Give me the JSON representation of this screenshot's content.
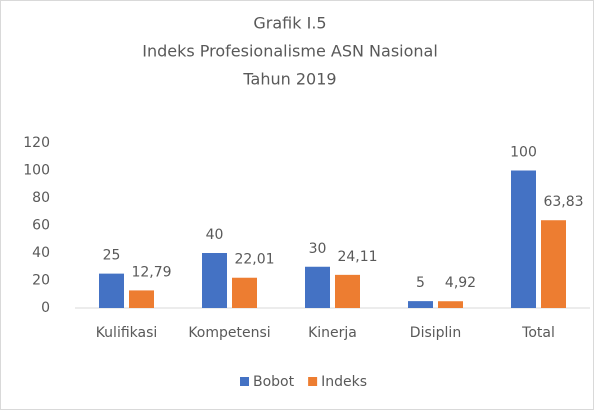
{
  "chart_data": {
    "type": "bar",
    "title_lines": [
      "Grafik I.5",
      "Indeks Profesionalisme ASN Nasional",
      "Tahun 2019"
    ],
    "categories": [
      "Kulifikasi",
      "Kompetensi",
      "Kinerja",
      "Disiplin",
      "Total"
    ],
    "series": [
      {
        "name": "Bobot",
        "color": "#4472c4",
        "values": [
          25,
          40,
          30,
          5,
          100
        ]
      },
      {
        "name": "Indeks",
        "color": "#ed7d31",
        "values": [
          12.79,
          22.01,
          24.11,
          4.92,
          63.83
        ],
        "value_labels": [
          "12,79",
          "22,01",
          "24,11",
          "4,92",
          "63,83"
        ]
      }
    ],
    "ylim": [
      0,
      120
    ],
    "yticks": [
      0,
      20,
      40,
      60,
      80,
      100,
      120
    ],
    "grid": false,
    "legend": "bottom"
  }
}
